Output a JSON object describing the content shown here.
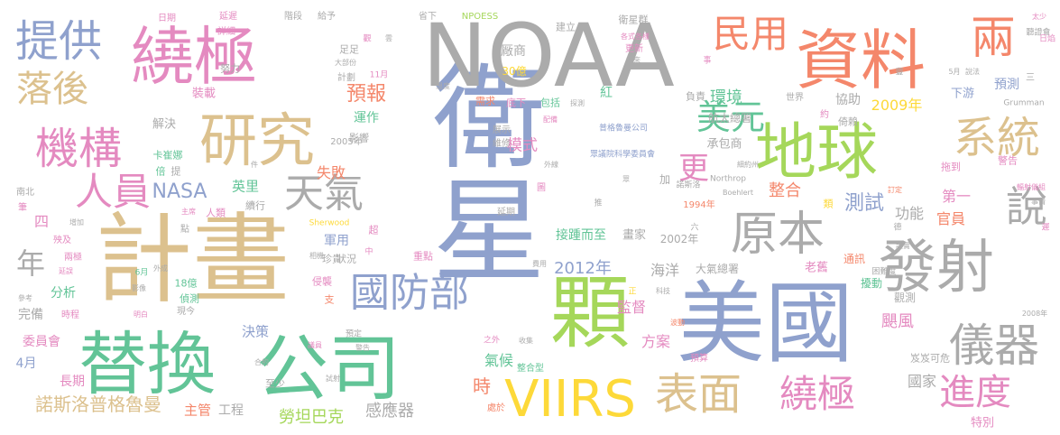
{
  "palette": {
    "blue": "#8fa1cd",
    "gray": "#ababab",
    "orange": "#f4876b",
    "green": "#62c497",
    "pink": "#e48ac0",
    "tan": "#dcc18e",
    "lime": "#a5d75a",
    "yellow": "#fdd939"
  },
  "words": [
    {
      "text": "衛星",
      "color": "blue"
    },
    {
      "text": "NOAA",
      "color": "gray"
    },
    {
      "text": "計畫",
      "color": "tan"
    },
    {
      "text": "美國",
      "color": "blue"
    },
    {
      "text": "顆",
      "color": "lime"
    },
    {
      "text": "公司",
      "color": "green"
    },
    {
      "text": "資料",
      "color": "orange"
    },
    {
      "text": "替換",
      "color": "green"
    },
    {
      "text": "地球",
      "color": "lime"
    },
    {
      "text": "繞極",
      "color": "pink"
    },
    {
      "text": "研究",
      "color": "tan"
    },
    {
      "text": "發射",
      "color": "gray"
    },
    {
      "text": "VIIRS",
      "color": "yellow"
    },
    {
      "text": "國防部",
      "color": "blue"
    },
    {
      "text": "表面",
      "color": "tan"
    },
    {
      "text": "繞極",
      "color": "pink"
    },
    {
      "text": "原本",
      "color": "gray"
    },
    {
      "text": "兩",
      "color": "orange"
    },
    {
      "text": "機構",
      "color": "pink"
    },
    {
      "text": "提供",
      "color": "blue"
    },
    {
      "text": "系統",
      "color": "tan"
    },
    {
      "text": "儀器",
      "color": "gray"
    },
    {
      "text": "進度",
      "color": "pink"
    },
    {
      "text": "天氣",
      "color": "gray"
    },
    {
      "text": "民用",
      "color": "orange"
    },
    {
      "text": "人員",
      "color": "pink"
    },
    {
      "text": "落後",
      "color": "tan"
    },
    {
      "text": "說",
      "color": "gray"
    },
    {
      "text": "美元",
      "color": "green"
    },
    {
      "text": "極",
      "color": "pink"
    },
    {
      "text": "年",
      "color": "gray"
    },
    {
      "text": "更",
      "color": "pink"
    },
    {
      "text": "NASA",
      "color": "blue"
    },
    {
      "text": "預報",
      "color": "orange"
    },
    {
      "text": "測試",
      "color": "blue"
    },
    {
      "text": "諾斯洛普格魯曼",
      "color": "tan"
    },
    {
      "text": "勞坦巴克",
      "color": "lime"
    },
    {
      "text": "環境",
      "color": "green"
    },
    {
      "text": "2012年",
      "color": "blue"
    },
    {
      "text": "模式",
      "color": "pink"
    },
    {
      "text": "監督",
      "color": "pink"
    },
    {
      "text": "感應器",
      "color": "gray"
    },
    {
      "text": "颶風",
      "color": "pink"
    },
    {
      "text": "2009年",
      "color": "yellow"
    },
    {
      "text": "功能",
      "color": "gray"
    },
    {
      "text": "國家",
      "color": "gray"
    },
    {
      "text": "第一",
      "color": "pink"
    },
    {
      "text": "官員",
      "color": "orange"
    },
    {
      "text": "整合",
      "color": "orange"
    },
    {
      "text": "海洋",
      "color": "gray"
    },
    {
      "text": "方案",
      "color": "pink"
    },
    {
      "text": "氣候",
      "color": "green"
    },
    {
      "text": "主管",
      "color": "orange"
    },
    {
      "text": "工程",
      "color": "gray"
    },
    {
      "text": "失敗",
      "color": "orange"
    },
    {
      "text": "英里",
      "color": "green"
    },
    {
      "text": "軍用",
      "color": "blue"
    },
    {
      "text": "分析",
      "color": "green"
    },
    {
      "text": "完備",
      "color": "gray"
    },
    {
      "text": "委員會",
      "color": "pink"
    },
    {
      "text": "長期",
      "color": "pink"
    },
    {
      "text": "4月",
      "color": "blue"
    },
    {
      "text": "時",
      "color": "orange"
    },
    {
      "text": "決策",
      "color": "blue"
    },
    {
      "text": "厰商",
      "color": "gray"
    },
    {
      "text": "30億",
      "color": "yellow"
    },
    {
      "text": "運作",
      "color": "green"
    },
    {
      "text": "接踵而至",
      "color": "green"
    },
    {
      "text": "畫家",
      "color": "gray"
    },
    {
      "text": "2002年",
      "color": "gray"
    },
    {
      "text": "承包商",
      "color": "gray"
    },
    {
      "text": "航太總署",
      "color": "gray"
    },
    {
      "text": "大氣總署",
      "color": "gray"
    },
    {
      "text": "老舊",
      "color": "pink"
    },
    {
      "text": "協助",
      "color": "gray"
    },
    {
      "text": "預測",
      "color": "blue"
    },
    {
      "text": "下游",
      "color": "blue"
    },
    {
      "text": "通訊",
      "color": "orange"
    },
    {
      "text": "擾動",
      "color": "green"
    },
    {
      "text": "觀測",
      "color": "gray"
    },
    {
      "text": "特別",
      "color": "pink"
    },
    {
      "text": "裝載",
      "color": "pink"
    },
    {
      "text": "解決",
      "color": "gray"
    },
    {
      "text": "卡崔娜",
      "color": "green"
    },
    {
      "text": "計劃",
      "color": "gray"
    },
    {
      "text": "努力",
      "color": "gray"
    },
    {
      "text": "日期",
      "color": "pink"
    },
    {
      "text": "詳細",
      "color": "pink"
    },
    {
      "text": "延遲",
      "color": "pink"
    },
    {
      "text": "階段",
      "color": "gray"
    },
    {
      "text": "給予",
      "color": "gray"
    },
    {
      "text": "省下",
      "color": "gray"
    },
    {
      "text": "NPOESS",
      "color": "lime"
    },
    {
      "text": "建立",
      "color": "gray"
    },
    {
      "text": "衛星群",
      "color": "gray"
    },
    {
      "text": "聽證會",
      "color": "gray"
    },
    {
      "text": "太少",
      "color": "pink"
    },
    {
      "text": "日焰",
      "color": "pink"
    },
    {
      "text": "5月",
      "color": "gray"
    },
    {
      "text": "說法",
      "color": "gray"
    },
    {
      "text": "更新",
      "color": "pink"
    },
    {
      "text": "本來",
      "color": "gray"
    },
    {
      "text": "各式各樣",
      "color": "pink"
    },
    {
      "text": "需求",
      "color": "orange"
    },
    {
      "text": "底下",
      "color": "pink"
    },
    {
      "text": "包括",
      "color": "green"
    },
    {
      "text": "紅",
      "color": "green"
    },
    {
      "text": "負責",
      "color": "gray"
    },
    {
      "text": "世界",
      "color": "gray"
    },
    {
      "text": "倚賴",
      "color": "gray"
    },
    {
      "text": "Grumman",
      "color": "gray"
    },
    {
      "text": "11月",
      "color": "pink"
    },
    {
      "text": "大部份",
      "color": "gray"
    },
    {
      "text": "足足",
      "color": "gray"
    },
    {
      "text": "影響",
      "color": "gray"
    },
    {
      "text": "展示",
      "color": "gray"
    },
    {
      "text": "維修",
      "color": "gray"
    },
    {
      "text": "2005年",
      "color": "gray"
    },
    {
      "text": "普格魯曼公司",
      "color": "blue"
    },
    {
      "text": "眾議院科學委員會",
      "color": "blue"
    },
    {
      "text": "細約州",
      "color": "gray"
    },
    {
      "text": "1994年",
      "color": "orange"
    },
    {
      "text": "諾斯洛",
      "color": "gray"
    },
    {
      "text": "Northrop",
      "color": "gray"
    },
    {
      "text": "Boehlert",
      "color": "gray"
    },
    {
      "text": "拖到",
      "color": "pink"
    },
    {
      "text": "警告",
      "color": "pink"
    },
    {
      "text": "重點",
      "color": "pink"
    },
    {
      "text": "珍貴",
      "color": "gray"
    },
    {
      "text": "狀況",
      "color": "gray"
    },
    {
      "text": "續行",
      "color": "gray"
    },
    {
      "text": "人類",
      "color": "pink"
    },
    {
      "text": "南北",
      "color": "gray"
    },
    {
      "text": "四",
      "color": "pink"
    },
    {
      "text": "增加",
      "color": "gray"
    },
    {
      "text": "殃及",
      "color": "pink"
    },
    {
      "text": "兩極",
      "color": "pink"
    },
    {
      "text": "時程",
      "color": "pink"
    },
    {
      "text": "18億",
      "color": "green"
    },
    {
      "text": "偵測",
      "color": "green"
    },
    {
      "text": "現今",
      "color": "gray"
    },
    {
      "text": "6月",
      "color": "green"
    },
    {
      "text": "影像",
      "color": "gray"
    },
    {
      "text": "侵襲",
      "color": "pink"
    },
    {
      "text": "支",
      "color": "orange"
    },
    {
      "text": "至少",
      "color": "gray"
    },
    {
      "text": "合約",
      "color": "gray"
    },
    {
      "text": "預算",
      "color": "pink"
    },
    {
      "text": "整合型",
      "color": "green"
    },
    {
      "text": "處於",
      "color": "orange"
    },
    {
      "text": "之外",
      "color": "pink"
    },
    {
      "text": "收集",
      "color": "gray"
    },
    {
      "text": "預定",
      "color": "gray"
    },
    {
      "text": "議員",
      "color": "pink"
    },
    {
      "text": "警告",
      "color": "gray"
    },
    {
      "text": "試射",
      "color": "gray"
    },
    {
      "text": "2008年",
      "color": "gray"
    },
    {
      "text": "岌岌可危",
      "color": "gray"
    },
    {
      "text": "困難度",
      "color": "gray"
    },
    {
      "text": "Sherwood",
      "color": "yellow"
    },
    {
      "text": "倍",
      "color": "green"
    },
    {
      "text": "提",
      "color": "gray"
    },
    {
      "text": "件",
      "color": "gray"
    },
    {
      "text": "點",
      "color": "gray"
    },
    {
      "text": "主席",
      "color": "pink"
    },
    {
      "text": "延期",
      "color": "gray"
    },
    {
      "text": "費用",
      "color": "gray"
    },
    {
      "text": "正",
      "color": "yellow"
    },
    {
      "text": "科技",
      "color": "gray"
    },
    {
      "text": "波動",
      "color": "orange"
    },
    {
      "text": "類",
      "color": "yellow"
    },
    {
      "text": "加",
      "color": "gray"
    },
    {
      "text": "圖",
      "color": "pink"
    },
    {
      "text": "推",
      "color": "gray"
    },
    {
      "text": "六",
      "color": "gray"
    },
    {
      "text": "德",
      "color": "gray"
    },
    {
      "text": "輻射儀組",
      "color": "pink"
    },
    {
      "text": "訂定",
      "color": "orange"
    },
    {
      "text": "事情",
      "color": "gray"
    },
    {
      "text": "遲",
      "color": "pink"
    },
    {
      "text": "證實",
      "color": "gray"
    },
    {
      "text": "約",
      "color": "pink"
    },
    {
      "text": "事",
      "color": "pink"
    },
    {
      "text": "三",
      "color": "gray"
    },
    {
      "text": "豐",
      "color": "gray"
    },
    {
      "text": "溫度",
      "color": "gray"
    },
    {
      "text": "探測",
      "color": "gray"
    },
    {
      "text": "配備",
      "color": "pink"
    },
    {
      "text": "外線",
      "color": "gray"
    },
    {
      "text": "眾",
      "color": "gray"
    },
    {
      "text": "雲",
      "color": "gray"
    },
    {
      "text": "觀",
      "color": "pink"
    },
    {
      "text": "超",
      "color": "pink"
    },
    {
      "text": "中",
      "color": "pink"
    },
    {
      "text": "筆",
      "color": "pink"
    },
    {
      "text": "外成",
      "color": "gray"
    },
    {
      "text": "延誤",
      "color": "pink"
    },
    {
      "text": "相機",
      "color": "gray"
    },
    {
      "text": "參考",
      "color": "gray"
    },
    {
      "text": "明白",
      "color": "pink"
    }
  ]
}
